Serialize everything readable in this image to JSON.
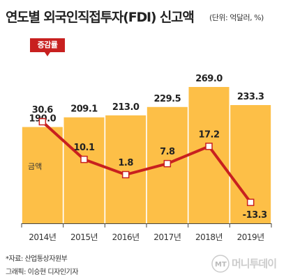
{
  "header": {
    "title": "연도별 외국인직접투자(FDI) 신고액",
    "unit": "(단위: 억달러, %)"
  },
  "legend": {
    "rate_label": "증감률",
    "amount_label": "금액"
  },
  "footer": {
    "source": "*자료: 산업통상자원부",
    "credit": "그래픽: 이승현 디자인기자"
  },
  "logo": {
    "text": "MT 머니투데이"
  },
  "chart_data": {
    "type": "bar",
    "categories": [
      "2014년",
      "2015년",
      "2016년",
      "2017년",
      "2018년",
      "2019년"
    ],
    "series": [
      {
        "name": "금액",
        "type": "bar",
        "values": [
          190.0,
          209.1,
          213.0,
          229.5,
          269.0,
          233.3
        ],
        "labels": [
          "190.0",
          "209.1",
          "213.0",
          "229.5",
          "269.0",
          "233.3"
        ]
      },
      {
        "name": "증감률",
        "type": "line",
        "values": [
          30.6,
          10.1,
          1.8,
          7.8,
          17.2,
          -13.3
        ],
        "labels": [
          "30.6",
          "10.1",
          "1.8",
          "7.8",
          "17.2",
          "-13.3"
        ]
      }
    ],
    "colors": {
      "bar": "#fdbf47",
      "line": "#c8201f",
      "marker_fill": "#ffffff",
      "axis": "#444444"
    }
  }
}
